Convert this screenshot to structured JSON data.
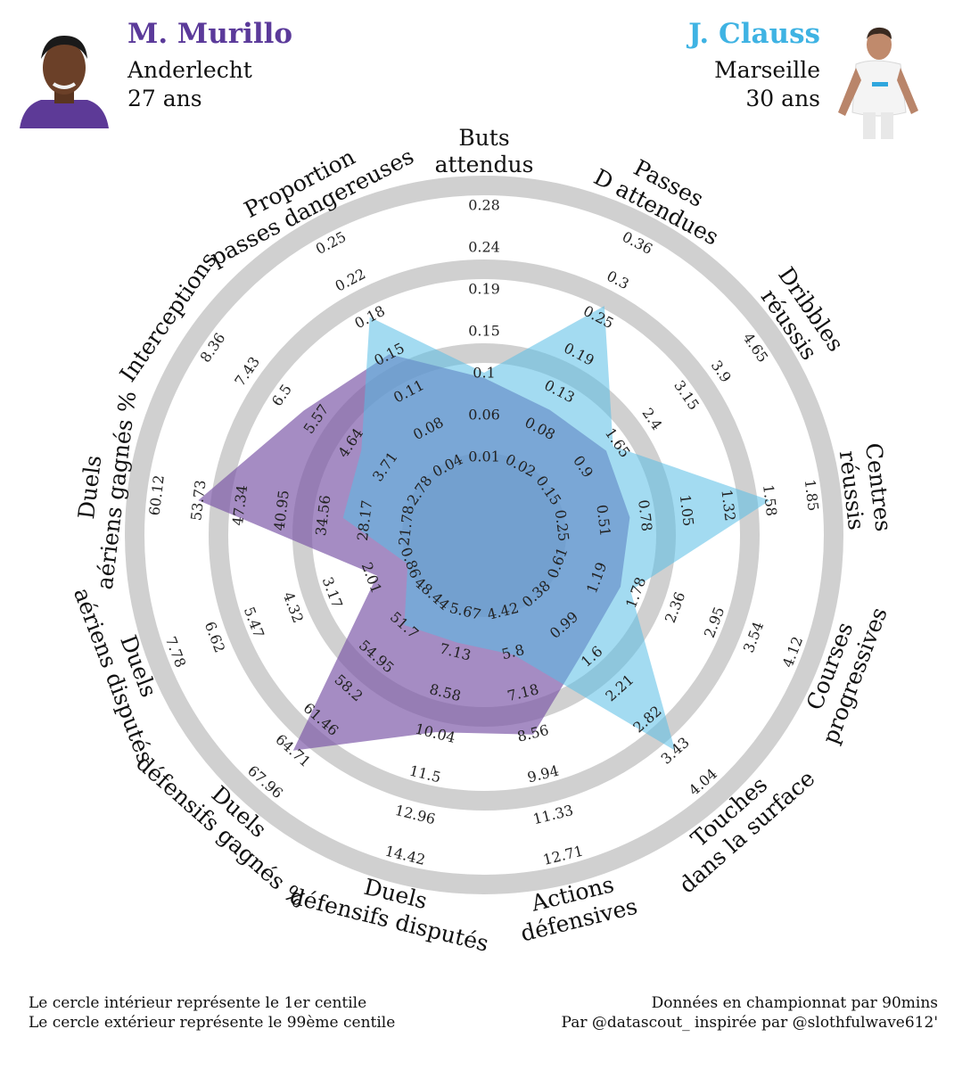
{
  "header": {
    "player1": {
      "name": "M. Murillo",
      "club": "Anderlecht",
      "age": "27 ans",
      "color": "#5b3a9a"
    },
    "player2": {
      "name": "J. Clauss",
      "club": "Marseille",
      "age": "30 ans",
      "color": "#3fb3e3"
    }
  },
  "footer": {
    "left_line1": "Le cercle intérieur représente le 1er centile",
    "left_line2": "Le cercle extérieur représente le 99ème centile",
    "right_line1": "Données en championnat par 90mins",
    "right_line2": "Par @datascout_ inspirée par @slothfulwave612'"
  },
  "chart_data": {
    "type": "radar",
    "axes": [
      {
        "label": [
          "Buts",
          "attendus"
        ],
        "ticks": [
          "0.01",
          "0.06",
          "0.1",
          "0.15",
          "0.19",
          "0.24",
          "0.28"
        ]
      },
      {
        "label": [
          "Passes",
          "D attendues"
        ],
        "ticks": [
          "0.02",
          "0.08",
          "0.13",
          "0.19",
          "0.25",
          "0.3",
          "0.36"
        ]
      },
      {
        "label": [
          "Dribbles",
          "réussis"
        ],
        "ticks": [
          "0.15",
          "0.9",
          "1.65",
          "2.4",
          "3.15",
          "3.9",
          "4.65"
        ]
      },
      {
        "label": [
          "Centres",
          "réussis"
        ],
        "ticks": [
          "0.25",
          "0.51",
          "0.78",
          "1.05",
          "1.32",
          "1.58",
          "1.85"
        ]
      },
      {
        "label": [
          "Courses",
          "progressives"
        ],
        "ticks": [
          "0.61",
          "1.19",
          "1.78",
          "2.36",
          "2.95",
          "3.54",
          "4.12"
        ]
      },
      {
        "label": [
          "Touches",
          "dans la surface"
        ],
        "ticks": [
          "0.38",
          "0.99",
          "1.6",
          "2.21",
          "2.82",
          "3.43",
          "4.04"
        ]
      },
      {
        "label": [
          "Actions",
          "défensives"
        ],
        "ticks": [
          "4.42",
          "5.8",
          "7.18",
          "8.56",
          "9.94",
          "11.33",
          "12.71"
        ]
      },
      {
        "label": [
          "Duels",
          "défensifs disputés"
        ],
        "ticks": [
          "5.67",
          "7.13",
          "8.58",
          "10.04",
          "11.5",
          "12.96",
          "14.42"
        ]
      },
      {
        "label": [
          "Duels",
          "défensifs gagnés %"
        ],
        "ticks": [
          "48.44",
          "51.7",
          "54.95",
          "58.2",
          "61.46",
          "64.71",
          "67.96"
        ]
      },
      {
        "label": [
          "Duels",
          "aériens disputés"
        ],
        "ticks": [
          "0.86",
          "2.01",
          "3.17",
          "4.32",
          "5.47",
          "6.62",
          "7.78"
        ]
      },
      {
        "label": [
          "Duels",
          "aériens gagnés %"
        ],
        "ticks": [
          "21.78",
          "28.17",
          "34.56",
          "40.95",
          "47.34",
          "53.73",
          "60.12"
        ]
      },
      {
        "label": [
          "Interceptions"
        ],
        "ticks": [
          "2.78",
          "3.71",
          "4.64",
          "5.57",
          "6.5",
          "7.43",
          "8.36"
        ]
      },
      {
        "label": [
          "Proportion",
          "passes dangereuses"
        ],
        "ticks": [
          "0.04",
          "0.08",
          "0.11",
          "0.15",
          "0.18",
          "0.22",
          "0.25"
        ]
      }
    ],
    "series": [
      {
        "name": "M. Murillo",
        "color": "#7b55a6",
        "values": [
          0.095,
          0.105,
          1.4,
          0.68,
          1.55,
          1.45,
          8.6,
          10.0,
          64.71,
          1.85,
          53.73,
          5.9,
          0.15
        ]
      },
      {
        "name": "J. Clauss",
        "color": "#58bde6",
        "values": [
          0.1,
          0.265,
          1.55,
          1.58,
          1.7,
          3.43,
          5.9,
          6.8,
          51.7,
          0.95,
          31.5,
          4.35,
          0.18
        ]
      }
    ],
    "range_note": "inner circle = 1st percentile, outer circle = 99th percentile"
  }
}
